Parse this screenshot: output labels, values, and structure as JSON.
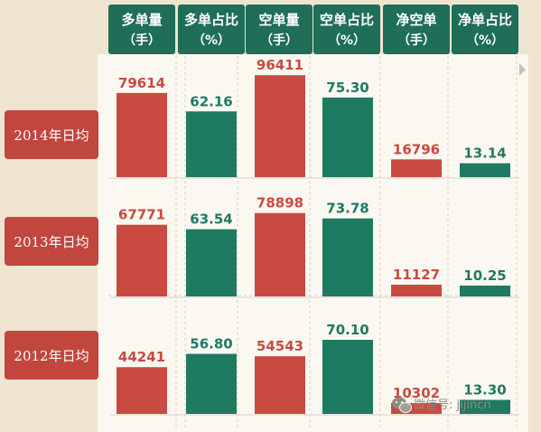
{
  "columns": [
    {
      "line1": "多单量",
      "line2": "（手）"
    },
    {
      "line1": "多单占比",
      "line2": "（%）"
    },
    {
      "line1": "空单量",
      "line2": "（手）"
    },
    {
      "line1": "空单占比",
      "line2": "（%）"
    },
    {
      "line1": "净空单",
      "line2": "（手）"
    },
    {
      "line1": "净单占比",
      "line2": "（%）"
    }
  ],
  "rows": [
    {
      "label": "2014年日均",
      "values": [
        "79614",
        "62.16",
        "96411",
        "75.30",
        "16796",
        "13.14"
      ]
    },
    {
      "label": "2013年日均",
      "values": [
        "67771",
        "63.54",
        "78898",
        "73.78",
        "11127",
        "10.25"
      ]
    },
    {
      "label": "2012年日均",
      "values": [
        "44241",
        "56.80",
        "54543",
        "70.10",
        "10302",
        "13.30"
      ]
    }
  ],
  "watermark": "微信号: jijincn",
  "colors": {
    "red": "#c94a41",
    "green": "#1f7a62",
    "header_green": "#1f6e58",
    "row_label": "#c1463e",
    "panel": "#fbf8f1",
    "background": "#efe4cf"
  },
  "chart_data": {
    "type": "bar",
    "categories": [
      "2014年日均",
      "2013年日均",
      "2012年日均"
    ],
    "series": [
      {
        "name": "多单量（手）",
        "values": [
          79614,
          67771,
          44241
        ]
      },
      {
        "name": "多单占比（%）",
        "values": [
          62.16,
          63.54,
          56.8
        ]
      },
      {
        "name": "空单量（手）",
        "values": [
          96411,
          78898,
          54543
        ]
      },
      {
        "name": "空单占比（%）",
        "values": [
          75.3,
          73.78,
          70.1
        ]
      },
      {
        "name": "净空单（手）",
        "values": [
          16796,
          11127,
          10302
        ]
      },
      {
        "name": "净单占比（%）",
        "values": [
          13.14,
          10.25,
          13.3
        ]
      }
    ]
  }
}
